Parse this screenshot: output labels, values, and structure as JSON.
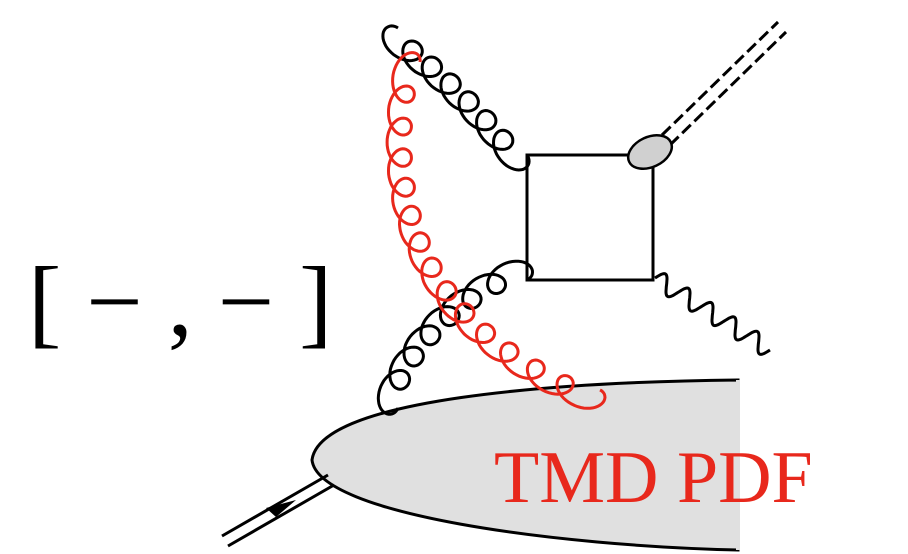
{
  "gauge_link": "[ − , − ]",
  "blob_label": "TMD PDF"
}
